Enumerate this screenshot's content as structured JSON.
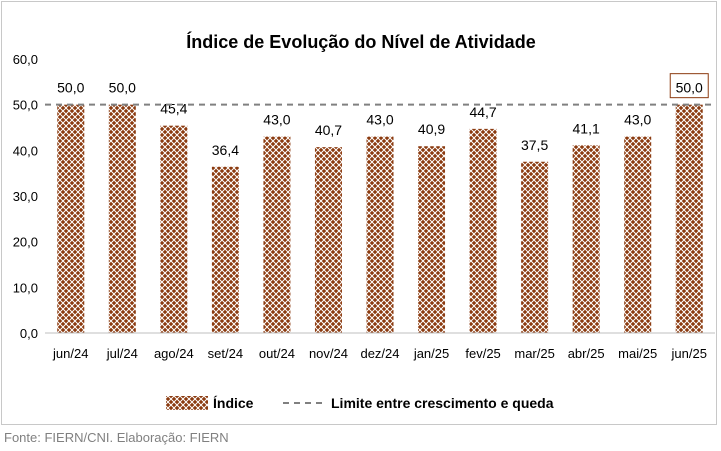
{
  "chart_data": {
    "type": "bar",
    "title": "Índice de Evolução do Nível de Atividade",
    "categories": [
      "jun/24",
      "jul/24",
      "ago/24",
      "set/24",
      "out/24",
      "nov/24",
      "dez/24",
      "jan/25",
      "fev/25",
      "mar/25",
      "abr/25",
      "mai/25",
      "jun/25"
    ],
    "series": [
      {
        "name": "Índice",
        "values": [
          50.0,
          50.0,
          45.4,
          36.4,
          43.0,
          40.7,
          43.0,
          40.9,
          44.7,
          37.5,
          41.1,
          43.0,
          50.0
        ]
      }
    ],
    "data_labels": [
      "50,0",
      "50,0",
      "45,4",
      "36,4",
      "43,0",
      "40,7",
      "43,0",
      "40,9",
      "44,7",
      "37,5",
      "41,1",
      "43,0",
      "50,0"
    ],
    "highlighted_label_index": 12,
    "y_ticks": [
      "0,0",
      "10,0",
      "20,0",
      "30,0",
      "40,0",
      "50,0",
      "60,0"
    ],
    "ylim": [
      0,
      60
    ],
    "reference_line": {
      "name": "Limite entre crescimento e queda",
      "value": 50
    },
    "legend_position": "bottom",
    "grid": false,
    "colors": {
      "bar": "#8b3a0f",
      "hatch": "#ffffff",
      "reference": "#808080",
      "text": "#000000"
    }
  },
  "source": "Fonte: FIERN/CNI. Elaboração: FIERN"
}
